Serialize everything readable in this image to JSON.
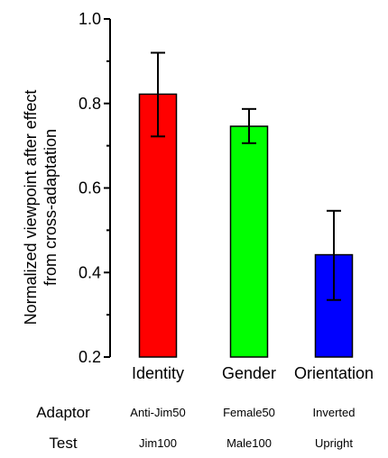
{
  "chart_data": {
    "type": "bar",
    "title": "",
    "xlabel": "",
    "ylabel_lines": [
      "Normalized viewpoint after effect",
      "from cross-adaptation"
    ],
    "categories": [
      "Identity",
      "Gender",
      "Orientation"
    ],
    "values": [
      0.822,
      0.746,
      0.442
    ],
    "error_low": [
      0.722,
      0.706,
      0.335
    ],
    "error_high": [
      0.92,
      0.787,
      0.546
    ],
    "colors": [
      "#ff0000",
      "#00ff00",
      "#0000ff"
    ],
    "ylim": [
      0.2,
      1.0
    ],
    "major_ticks": [
      0.2,
      0.4,
      0.6,
      0.8,
      1.0
    ],
    "tick_labels": [
      "0.2",
      "0.4",
      "0.6",
      "0.8",
      "1.0"
    ],
    "minor_ticks": [
      0.3,
      0.5,
      0.7,
      0.9
    ],
    "grid": false,
    "legend": "none"
  },
  "conditions": {
    "adaptor_label": "Adaptor",
    "test_label": "Test",
    "adaptor": [
      "Anti-Jim50",
      "Female50",
      "Inverted"
    ],
    "test": [
      "Jim100",
      "Male100",
      "Upright"
    ]
  }
}
